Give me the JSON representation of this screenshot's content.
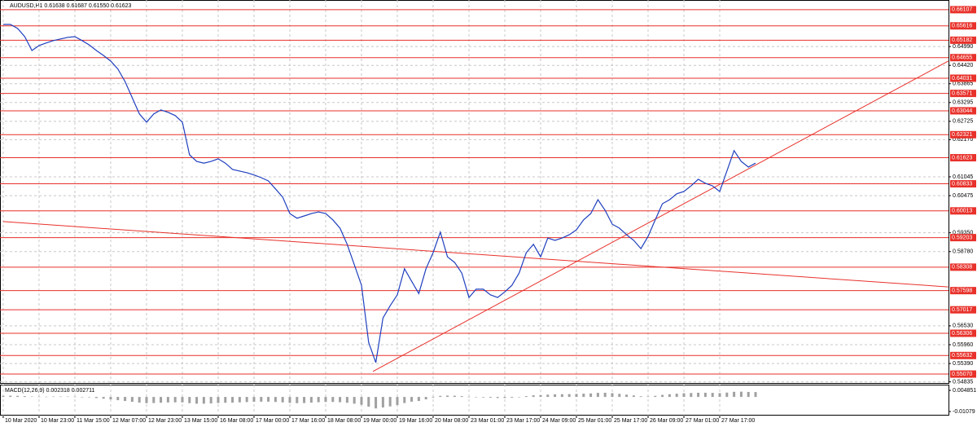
{
  "chart_data": {
    "type": "line",
    "title": "AUDUSD,H1  0.61638 0.61687 0.61550 0.61623",
    "categories": [
      "10 Mar 2020",
      null,
      null,
      null,
      null,
      "10 Mar 23:00",
      null,
      null,
      null,
      null,
      "11 Mar 15:00",
      null,
      null,
      null,
      null,
      "12 Mar 07:00",
      null,
      null,
      null,
      null,
      "12 Mar 23:00",
      null,
      null,
      null,
      null,
      "13 Mar 15:00",
      null,
      null,
      null,
      null,
      "16 Mar 08:00",
      null,
      null,
      null,
      null,
      "17 Mar 00:00",
      null,
      null,
      null,
      null,
      "17 Mar 16:00",
      null,
      null,
      null,
      null,
      "18 Mar 08:00",
      null,
      null,
      null,
      null,
      "19 Mar 00:00",
      null,
      null,
      null,
      null,
      "19 Mar 16:00",
      null,
      null,
      null,
      null,
      "20 Mar 08:00",
      null,
      null,
      null,
      null,
      "23 Mar 01:00",
      null,
      null,
      null,
      null,
      "23 Mar 17:00",
      null,
      null,
      null,
      null,
      "24 Mar 09:00",
      null,
      null,
      null,
      null,
      "25 Mar 01:00",
      null,
      null,
      null,
      null,
      "25 Mar 17:00",
      null,
      null,
      null,
      null,
      "26 Mar 09:00",
      null,
      null,
      null,
      null,
      "27 Mar 01:00",
      null,
      null,
      null,
      null,
      "27 Mar 17:00",
      null,
      null,
      null,
      null,
      null
    ],
    "series": [
      {
        "color": "#1f3fbf",
        "values": [
          0.6566,
          0.6566,
          0.6554,
          0.6529,
          0.6487,
          0.6502,
          0.651,
          0.6517,
          0.6522,
          0.6527,
          0.6529,
          0.6517,
          0.6504,
          0.6487,
          0.6472,
          0.6455,
          0.6431,
          0.6393,
          0.6344,
          0.6295,
          0.627,
          0.6295,
          0.6307,
          0.63,
          0.629,
          0.627,
          0.6171,
          0.6151,
          0.6146,
          0.6151,
          0.6159,
          0.6146,
          0.6127,
          0.6122,
          0.6117,
          0.611,
          0.6102,
          0.6092,
          0.6068,
          0.6043,
          0.5993,
          0.5979,
          0.5986,
          0.5993,
          0.5998,
          0.5993,
          0.5974,
          0.5949,
          0.59,
          0.5838,
          0.5776,
          0.5603,
          0.5542,
          0.5677,
          0.5714,
          0.5747,
          0.5826,
          0.5788,
          0.5751,
          0.5826,
          0.5875,
          0.5937,
          0.5862,
          0.5845,
          0.5813,
          0.5739,
          0.5764,
          0.5764,
          0.5747,
          0.5739,
          0.5756,
          0.5776,
          0.5813,
          0.5875,
          0.59,
          0.5862,
          0.5919,
          0.5912,
          0.5919,
          0.5929,
          0.5944,
          0.5974,
          0.5993,
          0.6035,
          0.6003,
          0.5961,
          0.5949,
          0.5929,
          0.5912,
          0.5887,
          0.5924,
          0.5974,
          0.6023,
          0.6035,
          0.6053,
          0.606,
          0.6077,
          0.6097,
          0.6085,
          0.6077,
          0.606,
          0.6122,
          0.6184,
          0.6151,
          0.6134,
          0.6146
        ]
      }
    ],
    "xlim": [
      -0.45,
      131.93
    ],
    "ylim": [
      0.548,
      0.664
    ],
    "yticks": [
      {
        "value": 0.6499,
        "label": "0.64990"
      },
      {
        "value": 0.6442,
        "label": "0.64420"
      },
      0.63865,
      0.63295,
      0.62725,
      {
        "value": 0.6217,
        "label": "0.62170"
      },
      0.61045,
      0.60475,
      {
        "value": 0.5935,
        "label": "0.59350"
      },
      {
        "value": 0.5878,
        "label": "0.58780"
      },
      {
        "value": 0.5653,
        "label": "0.56530"
      },
      {
        "value": 0.5596,
        "label": "0.55960"
      },
      {
        "value": 0.5539,
        "label": "0.55390"
      },
      0.54835
    ],
    "levels": [
      0.66107,
      0.65616,
      0.65182,
      0.64655,
      0.64031,
      0.63571,
      0.63044,
      0.62321,
      0.61623,
      0.60833,
      0.60013,
      0.59203,
      0.58308,
      0.57598,
      0.57017,
      0.56306,
      0.55632,
      {
        "value": 0.5507,
        "label": "0.55070"
      }
    ],
    "level_color": "#e8312a",
    "trendlines": [
      {
        "x": [
          0,
          131.9
        ],
        "y": [
          0.5969,
          0.5771
        ]
      },
      {
        "x": [
          51.6,
          131.9
        ],
        "y": [
          0.5515,
          0.6455
        ]
      }
    ],
    "grid": true,
    "macd": {
      "title": "MACD(12,26,9) 0.002318 0.002711",
      "color": "#a0a0a0",
      "ylim": [
        -0.0138,
        0.0091
      ],
      "yticks": [
        0.004851,
        -0.01079
      ],
      "values": [
        0.0008,
        0.0009,
        0.0008,
        0.0006,
        0.0003,
        0.0002,
        0.0002,
        0.0003,
        0.0003,
        0.0003,
        0.0002,
        0,
        -0.0003,
        -0.0008,
        -0.0013,
        -0.0018,
        -0.0024,
        -0.003,
        -0.0036,
        -0.0042,
        -0.0046,
        -0.0045,
        -0.0043,
        -0.0041,
        -0.004,
        -0.004,
        -0.0046,
        -0.005,
        -0.005,
        -0.0048,
        -0.0045,
        -0.0043,
        -0.0042,
        -0.004,
        -0.0038,
        -0.0036,
        -0.0035,
        -0.0035,
        -0.0037,
        -0.004,
        -0.0044,
        -0.0046,
        -0.0045,
        -0.0042,
        -0.0039,
        -0.0037,
        -0.0037,
        -0.0039,
        -0.0043,
        -0.005,
        -0.0058,
        -0.0072,
        -0.0085,
        -0.0078,
        -0.007,
        -0.006,
        -0.0045,
        -0.0035,
        -0.003,
        -0.0018,
        -0.0005,
        0.0008,
        0.001,
        0.0009,
        0.0006,
        0.0001,
        -0.0002,
        -0.0004,
        -0.0006,
        -0.0008,
        -0.0008,
        -0.0006,
        -0.0002,
        0.0006,
        0.0012,
        0.0013,
        0.0017,
        0.0019,
        0.002,
        0.0021,
        0.0022,
        0.0024,
        0.0026,
        0.003,
        0.0031,
        0.0028,
        0.0023,
        0.0017,
        0.0011,
        0.0005,
        0.0004,
        0.0008,
        0.0015,
        0.002,
        0.0024,
        0.0027,
        0.0029,
        0.0031,
        0.0031,
        0.003,
        0.0028,
        0.0032,
        0.0038,
        0.0039,
        0.0037,
        0.0036
      ]
    }
  }
}
